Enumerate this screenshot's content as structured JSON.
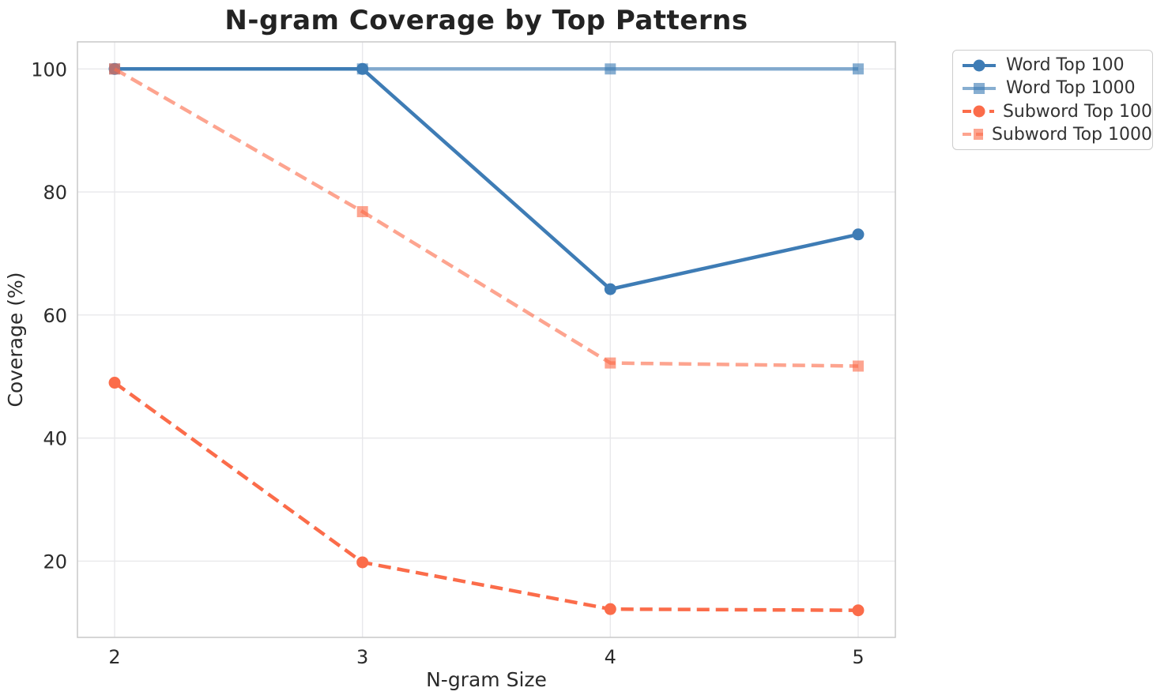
{
  "title": "N-gram Coverage by Top Patterns",
  "chart_data": {
    "type": "line",
    "x": [
      2,
      3,
      4,
      5
    ],
    "xticks": [
      2,
      3,
      4,
      5
    ],
    "yticks": [
      20,
      40,
      60,
      80,
      100
    ],
    "xlabel": "N-gram Size",
    "ylabel": "Coverage (%)",
    "xlim": [
      1.85,
      5.15
    ],
    "ylim": [
      7.6,
      104.4
    ],
    "grid": true,
    "legend_position": "outside-top-right",
    "series": [
      {
        "name": "Word Top 100",
        "values": [
          100,
          100,
          64.2,
          73.1
        ],
        "color": "#3e7cb5",
        "opacity": 1,
        "marker": "circle",
        "line_style": "solid"
      },
      {
        "name": "Word Top 1000",
        "values": [
          100,
          100,
          100,
          100
        ],
        "color": "#3e7cb5",
        "opacity": 0.62,
        "marker": "square",
        "line_style": "solid"
      },
      {
        "name": "Subword Top 100",
        "values": [
          49,
          19.8,
          12.2,
          12
        ],
        "color": "#fb6c4a",
        "opacity": 1,
        "marker": "circle",
        "line_style": "dashed"
      },
      {
        "name": "Subword Top 1000",
        "values": [
          100,
          76.8,
          52.2,
          51.7
        ],
        "color": "#fb6c4a",
        "opacity": 0.62,
        "marker": "square",
        "line_style": "dashed"
      }
    ]
  }
}
